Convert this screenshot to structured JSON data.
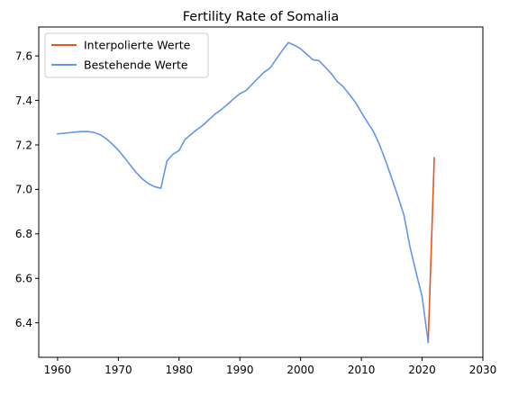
{
  "chart_data": {
    "type": "line",
    "title": "Fertility Rate of Somalia",
    "xlabel": "",
    "ylabel": "",
    "xlim": [
      1956.9,
      2030
    ],
    "ylim": [
      6.245,
      7.73
    ],
    "xticks": [
      1960,
      1970,
      1980,
      1990,
      2000,
      2010,
      2020,
      2030
    ],
    "xtick_labels": [
      "1960",
      "1970",
      "1980",
      "1990",
      "2000",
      "2010",
      "2020",
      "2030"
    ],
    "yticks": [
      6.4,
      6.6,
      6.8,
      7.0,
      7.2,
      7.4,
      7.6
    ],
    "ytick_labels": [
      "6.4",
      "6.6",
      "6.8",
      "7.0",
      "7.2",
      "7.4",
      "7.6"
    ],
    "grid": false,
    "legend_position": "upper-left",
    "series": [
      {
        "name": "Interpolierte Werte",
        "color": "#e8551e",
        "x": [
          2021,
          2022
        ],
        "y": [
          6.312,
          7.142
        ]
      },
      {
        "name": "Bestehende Werte",
        "color": "#6495ed",
        "x": [
          1960,
          1961,
          1962,
          1963,
          1964,
          1965,
          1966,
          1967,
          1968,
          1969,
          1970,
          1971,
          1972,
          1973,
          1974,
          1975,
          1976,
          1977,
          1978,
          1979,
          1980,
          1981,
          1982,
          1983,
          1984,
          1985,
          1986,
          1987,
          1988,
          1989,
          1990,
          1991,
          1992,
          1993,
          1994,
          1995,
          1996,
          1997,
          1998,
          1999,
          2000,
          2001,
          2002,
          2003,
          2004,
          2005,
          2006,
          2007,
          2008,
          2009,
          2010,
          2011,
          2012,
          2013,
          2014,
          2015,
          2016,
          2017,
          2018,
          2019,
          2020,
          2021
        ],
        "y": [
          7.25,
          7.252,
          7.255,
          7.258,
          7.26,
          7.26,
          7.256,
          7.246,
          7.228,
          7.204,
          7.176,
          7.143,
          7.108,
          7.074,
          7.046,
          7.025,
          7.012,
          7.005,
          7.128,
          7.158,
          7.175,
          7.225,
          7.248,
          7.27,
          7.29,
          7.316,
          7.34,
          7.36,
          7.383,
          7.408,
          7.43,
          7.444,
          7.472,
          7.5,
          7.527,
          7.546,
          7.586,
          7.625,
          7.66,
          7.648,
          7.632,
          7.608,
          7.583,
          7.579,
          7.551,
          7.522,
          7.486,
          7.462,
          7.428,
          7.392,
          7.346,
          7.302,
          7.26,
          7.2,
          7.128,
          7.05,
          6.97,
          6.885,
          6.742,
          6.627,
          6.518,
          6.312
        ]
      }
    ]
  }
}
